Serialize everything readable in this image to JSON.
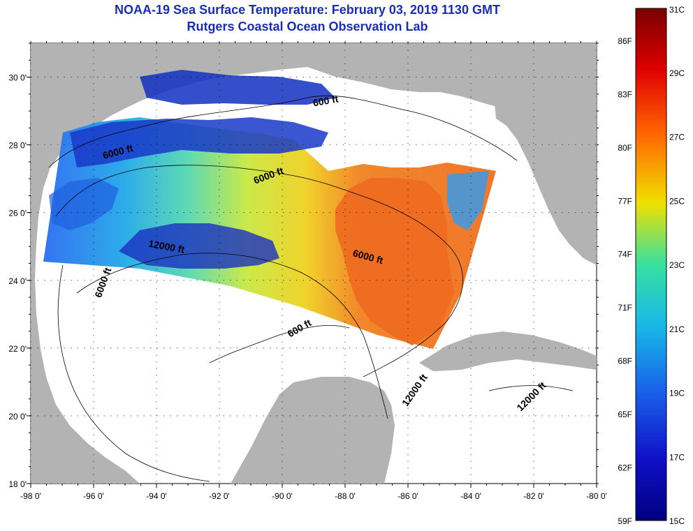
{
  "header": {
    "title": "NOAA-19 Sea Surface Temperature:  February 03, 2019 1130 GMT",
    "subtitle": "Rutgers Coastal Ocean Observation Lab"
  },
  "map": {
    "lon_range": [
      -98,
      -80
    ],
    "lat_range": [
      18,
      31
    ],
    "x_ticks": [
      "-98 0'",
      "-96 0'",
      "-94 0'",
      "-92 0'",
      "-90 0'",
      "-88 0'",
      "-86 0'",
      "-84 0'",
      "-82 0'",
      "-80 0'"
    ],
    "y_ticks": [
      "18 0'",
      "20 0'",
      "22 0'",
      "24 0'",
      "26 0'",
      "28 0'",
      "30 0'"
    ],
    "grid": "dotted",
    "land_color": "#b3b3b3",
    "no_data_color": "#ffffff",
    "contour_labels": [
      "600 ft",
      "6000 ft",
      "6000 ft",
      "12000 ft",
      "6000 ft",
      "6000 ft",
      "600 ft",
      "12000 ft",
      "12000 ft"
    ]
  },
  "colorbar": {
    "celsius_labels": [
      "31C",
      "29C",
      "27C",
      "25C",
      "23C",
      "21C",
      "19C",
      "17C",
      "15C"
    ],
    "fahrenheit_labels": [
      "86F",
      "83F",
      "80F",
      "77F",
      "74F",
      "71F",
      "68F",
      "65F",
      "62F",
      "59F"
    ],
    "range_c": [
      15,
      31
    ],
    "colors": [
      "#7a0000",
      "#e00000",
      "#ff6a00",
      "#f0e000",
      "#38e0a0",
      "#18b8e8",
      "#1860e8",
      "#1010c8",
      "#000080"
    ]
  }
}
